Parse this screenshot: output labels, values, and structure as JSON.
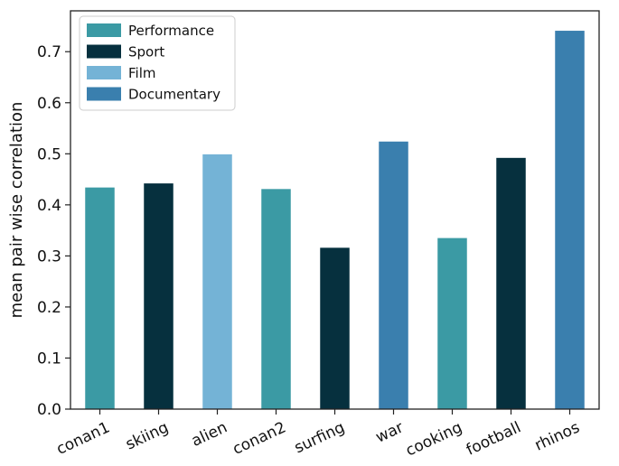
{
  "chart_data": {
    "type": "bar",
    "title": "",
    "xlabel": "",
    "ylabel": "mean pair wise correlation",
    "ylim": [
      0,
      0.78
    ],
    "yticks": [
      0.0,
      0.1,
      0.2,
      0.3,
      0.4,
      0.5,
      0.6,
      0.7
    ],
    "ytick_labels": [
      "0.0",
      "0.1",
      "0.2",
      "0.3",
      "0.4",
      "0.5",
      "0.6",
      "0.7"
    ],
    "grid": false,
    "legend_position": "top-left",
    "categories": [
      "conan1",
      "skiing",
      "alien",
      "conan2",
      "surfing",
      "war",
      "cooking",
      "football",
      "rhinos"
    ],
    "values": [
      0.434,
      0.442,
      0.499,
      0.431,
      0.316,
      0.524,
      0.335,
      0.492,
      0.741
    ],
    "bar_groups": [
      "Performance",
      "Sport",
      "Film",
      "Performance",
      "Sport",
      "Documentary",
      "Performance",
      "Sport",
      "Documentary"
    ],
    "legend": [
      {
        "name": "Performance",
        "color": "#3b9aa4"
      },
      {
        "name": "Sport",
        "color": "#06303e"
      },
      {
        "name": "Film",
        "color": "#74b3d6"
      },
      {
        "name": "Documentary",
        "color": "#3a7fae"
      }
    ]
  }
}
